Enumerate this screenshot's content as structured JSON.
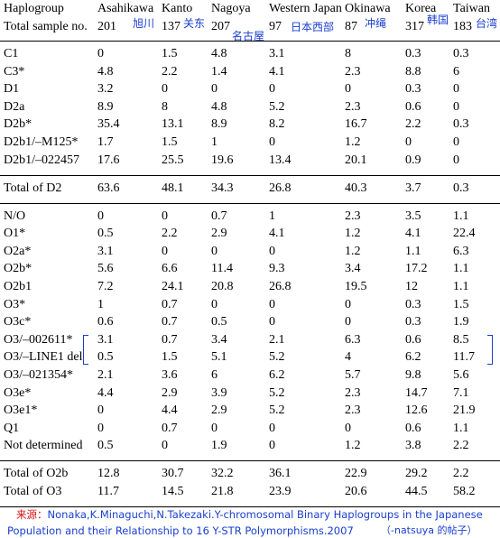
{
  "header": {
    "columns": [
      "Haplogroup",
      "Asahikawa",
      "Kanto",
      "Nagoya",
      "Western Japan",
      "Okinawa",
      "Korea",
      "Taiwan"
    ]
  },
  "sample_row": {
    "label": "Total sample no.",
    "values": [
      201,
      137,
      207,
      97,
      87,
      317,
      183
    ],
    "notes": [
      "旭川",
      "关东",
      "名古屋",
      "日本西部",
      "冲绳",
      "韩国",
      "台湾"
    ]
  },
  "sections": [
    {
      "rows": [
        {
          "label": "C1",
          "values": [
            0,
            1.5,
            4.8,
            3.1,
            8,
            0.3,
            0.3
          ]
        },
        {
          "label": "C3*",
          "values": [
            4.8,
            2.2,
            1.4,
            4.1,
            2.3,
            8.8,
            6
          ]
        },
        {
          "label": "D1",
          "values": [
            3.2,
            0,
            0,
            0,
            0,
            0.3,
            0
          ]
        },
        {
          "label": "D2a",
          "values": [
            8.9,
            8,
            4.8,
            5.2,
            2.3,
            0.6,
            0
          ]
        },
        {
          "label": "D2b*",
          "values": [
            35.4,
            13.1,
            8.9,
            8.2,
            16.7,
            2.2,
            0.3
          ]
        },
        {
          "label": "D2b1/–M125*",
          "values": [
            1.7,
            1.5,
            1,
            0,
            1.2,
            0,
            0
          ]
        },
        {
          "label": "D2b1/–022457",
          "values": [
            17.6,
            25.5,
            19.6,
            13.4,
            20.1,
            0.9,
            0
          ]
        }
      ]
    },
    {
      "rows": [
        {
          "label": "Total of D2",
          "values": [
            63.6,
            48.1,
            34.3,
            26.8,
            40.3,
            3.7,
            0.3
          ]
        }
      ]
    },
    {
      "rows": [
        {
          "label": "N/O",
          "values": [
            0,
            0,
            0.7,
            1,
            2.3,
            3.5,
            1.1
          ]
        },
        {
          "label": "O1*",
          "values": [
            0.5,
            2.2,
            2.9,
            4.1,
            1.2,
            4.1,
            22.4
          ]
        },
        {
          "label": "O2a*",
          "values": [
            3.1,
            0,
            0,
            0,
            1.2,
            1.1,
            6.3
          ]
        },
        {
          "label": "O2b*",
          "values": [
            5.6,
            6.6,
            11.4,
            9.3,
            3.4,
            17.2,
            1.1
          ]
        },
        {
          "label": "O2b1",
          "values": [
            7.2,
            24.1,
            20.8,
            26.8,
            19.5,
            12,
            1.1
          ]
        },
        {
          "label": "O3*",
          "values": [
            1,
            0.7,
            0,
            0,
            0,
            0.3,
            1.5
          ]
        },
        {
          "label": "O3c*",
          "values": [
            0.6,
            0.7,
            0.5,
            0,
            0,
            0.3,
            1.9
          ]
        },
        {
          "label": "O3/–002611*",
          "values": [
            3.1,
            0.7,
            3.4,
            2.1,
            6.3,
            0.6,
            8.5
          ]
        },
        {
          "label": "O3/–LINE1 del",
          "values": [
            0.5,
            1.5,
            5.1,
            5.2,
            4,
            6.2,
            11.7
          ]
        },
        {
          "label": "O3/–021354*",
          "values": [
            2.1,
            3.6,
            6,
            6.2,
            5.7,
            9.8,
            5.6
          ]
        },
        {
          "label": "O3e*",
          "values": [
            4.4,
            2.9,
            3.9,
            5.2,
            2.3,
            14.7,
            7.1
          ]
        },
        {
          "label": "O3e1*",
          "values": [
            0,
            4.4,
            2.9,
            5.2,
            2.3,
            12.6,
            21.9
          ]
        },
        {
          "label": "Q1",
          "values": [
            0,
            0.7,
            0,
            0,
            0,
            0.6,
            1.1
          ]
        },
        {
          "label": "Not determined",
          "values": [
            0.5,
            0,
            1.9,
            0,
            1.2,
            3.8,
            2.2
          ]
        }
      ]
    },
    {
      "rows": [
        {
          "label": "Total of O2b",
          "values": [
            12.8,
            30.7,
            32.2,
            36.1,
            22.9,
            29.2,
            2.2
          ]
        },
        {
          "label": "Total of O3",
          "values": [
            11.7,
            14.5,
            21.8,
            23.9,
            20.6,
            44.5,
            58.2
          ]
        }
      ]
    }
  ],
  "footer": {
    "source_label": "来源：",
    "source_line1": "Nonaka,K.Minaguchi,N.Takezaki.Y-chromosomal Binary Haplogroups in the Japanese",
    "source_line2": "Population and their Relationship to 16 Y-STR Polymorphisms.2007",
    "credit": "（-natsuya 的帖子）"
  }
}
